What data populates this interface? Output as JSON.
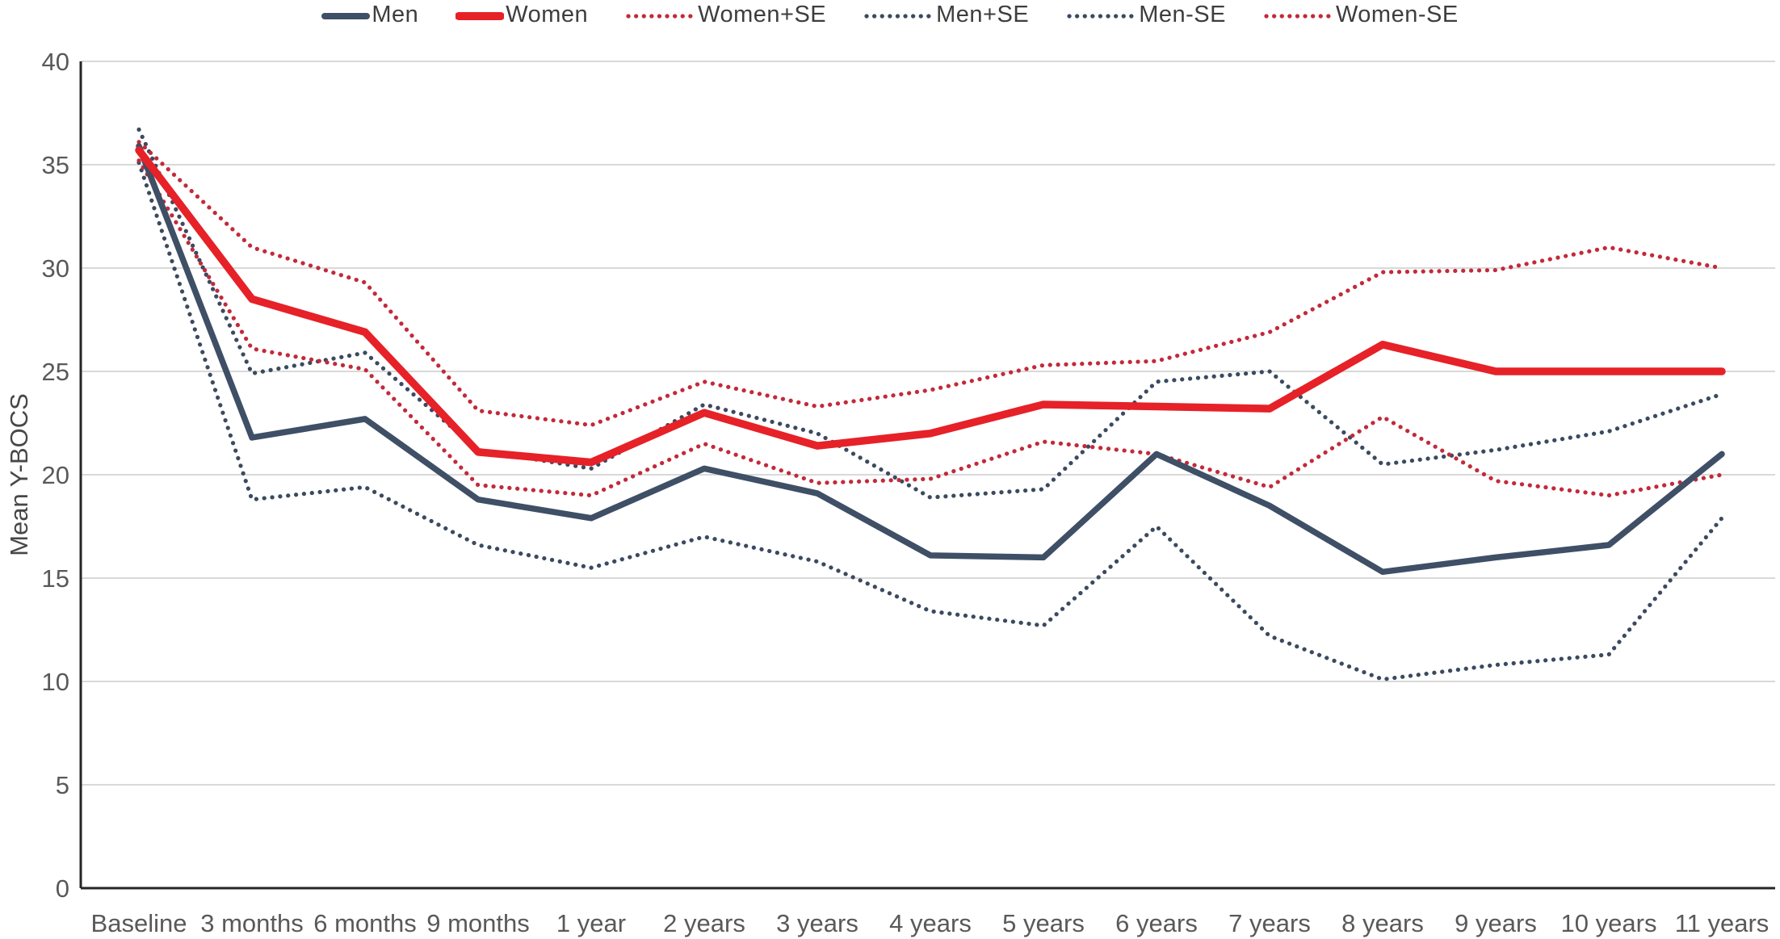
{
  "chart_data": {
    "type": "line",
    "title": "",
    "xlabel": "",
    "ylabel": "Mean Y-BOCS",
    "ylim": [
      0,
      40
    ],
    "yticks": [
      0,
      5,
      10,
      15,
      20,
      25,
      30,
      35,
      40
    ],
    "grid": true,
    "legend_position": "top",
    "categories": [
      "Baseline",
      "3 months",
      "6 months",
      "9 months",
      "1 year",
      "2 years",
      "3 years",
      "4 years",
      "5 years",
      "6 years",
      "7 years",
      "8 years",
      "9 years",
      "10 years",
      "11 years"
    ],
    "series": [
      {
        "name": "Men",
        "slug": "men",
        "style": "solid",
        "color": "#3e4f66",
        "values": [
          35.9,
          21.8,
          22.7,
          18.8,
          17.9,
          20.3,
          19.1,
          16.1,
          16.0,
          21.0,
          18.5,
          15.3,
          16.0,
          16.6,
          21.0
        ]
      },
      {
        "name": "Women",
        "slug": "women",
        "style": "solid",
        "color": "#e62128",
        "values": [
          35.7,
          28.5,
          26.9,
          21.1,
          20.6,
          23.0,
          21.4,
          22.0,
          23.4,
          23.3,
          23.2,
          26.3,
          25.0,
          25.0,
          25.0
        ]
      },
      {
        "name": "Women+SE",
        "slug": "women-plus-se",
        "style": "dotted",
        "color": "#c22a3a",
        "values": [
          36.1,
          31.0,
          29.3,
          23.1,
          22.4,
          24.5,
          23.3,
          24.1,
          25.3,
          25.5,
          26.9,
          29.8,
          29.9,
          31.0,
          30.0
        ]
      },
      {
        "name": "Men+SE",
        "slug": "men-plus-se",
        "style": "dotted",
        "color": "#3b4a60",
        "values": [
          36.7,
          24.9,
          25.9,
          21.2,
          20.3,
          23.4,
          22.0,
          18.9,
          19.3,
          24.5,
          25.0,
          20.5,
          21.2,
          22.1,
          23.9
        ]
      },
      {
        "name": "Men-SE",
        "slug": "men-minus-se",
        "style": "dotted",
        "color": "#3b4a60",
        "values": [
          35.1,
          18.8,
          19.4,
          16.6,
          15.5,
          17.0,
          15.8,
          13.4,
          12.7,
          17.5,
          12.2,
          10.1,
          10.8,
          11.3,
          17.9
        ]
      },
      {
        "name": "Women-SE",
        "slug": "women-minus-se",
        "style": "dotted",
        "color": "#c22a3a",
        "values": [
          35.2,
          26.1,
          25.1,
          19.5,
          19.0,
          21.5,
          19.6,
          19.8,
          21.6,
          21.0,
          19.4,
          22.8,
          19.7,
          19.0,
          20.0
        ]
      }
    ],
    "colors": {
      "axis": "#262626",
      "grid": "#d9d9d9",
      "tick_label": "#595959",
      "axis_title": "#474747"
    }
  }
}
